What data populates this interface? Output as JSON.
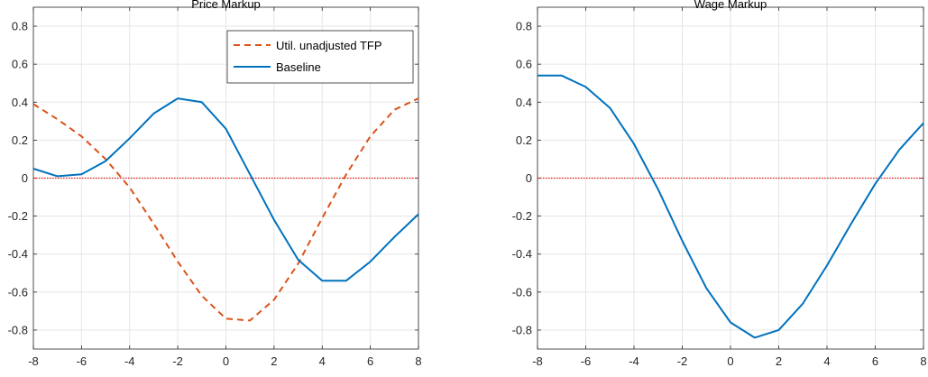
{
  "chart_data": [
    {
      "type": "line",
      "title": "Price Markup",
      "xlabel": "",
      "ylabel": "",
      "xlim": [
        -8,
        8
      ],
      "ylim": [
        -0.9,
        0.9
      ],
      "xticks": [
        -8,
        -6,
        -4,
        -2,
        0,
        2,
        4,
        6,
        8
      ],
      "yticks": [
        -0.8,
        -0.6,
        -0.4,
        -0.2,
        0,
        0.2,
        0.4,
        0.6,
        0.8
      ],
      "grid": true,
      "legend_position": "top-right",
      "zero_line_color": "#e31a1c",
      "series": [
        {
          "name": "Util. unadjusted TFP",
          "style": "dashed",
          "color": "#d95319",
          "x": [
            -8,
            -7,
            -6,
            -5,
            -4,
            -3,
            -2,
            -1,
            0,
            1,
            2,
            3,
            4,
            5,
            6,
            7,
            8
          ],
          "y": [
            0.39,
            0.31,
            0.22,
            0.1,
            -0.05,
            -0.24,
            -0.44,
            -0.62,
            -0.74,
            -0.75,
            -0.64,
            -0.45,
            -0.21,
            0.02,
            0.22,
            0.36,
            0.42
          ]
        },
        {
          "name": "Baseline",
          "style": "solid",
          "color": "#0072bd",
          "x": [
            -8,
            -7,
            -6,
            -5,
            -4,
            -3,
            -2,
            -1,
            0,
            1,
            2,
            3,
            4,
            5,
            6,
            7,
            8
          ],
          "y": [
            0.05,
            0.01,
            0.02,
            0.09,
            0.21,
            0.34,
            0.42,
            0.4,
            0.26,
            0.02,
            -0.22,
            -0.43,
            -0.54,
            -0.54,
            -0.44,
            -0.31,
            -0.19
          ]
        }
      ]
    },
    {
      "type": "line",
      "title": "Wage Markup",
      "xlabel": "",
      "ylabel": "",
      "xlim": [
        -8,
        8
      ],
      "ylim": [
        -0.9,
        0.9
      ],
      "xticks": [
        -8,
        -6,
        -4,
        -2,
        0,
        2,
        4,
        6,
        8
      ],
      "yticks": [
        -0.8,
        -0.6,
        -0.4,
        -0.2,
        0,
        0.2,
        0.4,
        0.6,
        0.8
      ],
      "grid": true,
      "legend_position": "none",
      "zero_line_color": "#e31a1c",
      "series": [
        {
          "name": "",
          "style": "solid",
          "color": "#0072bd",
          "x": [
            -8,
            -7,
            -6,
            -5,
            -4,
            -3,
            -2,
            -1,
            0,
            1,
            2,
            3,
            4,
            5,
            6,
            7,
            8
          ],
          "y": [
            0.54,
            0.54,
            0.48,
            0.37,
            0.18,
            -0.06,
            -0.33,
            -0.58,
            -0.76,
            -0.84,
            -0.8,
            -0.66,
            -0.46,
            -0.24,
            -0.03,
            0.15,
            0.29
          ]
        }
      ]
    }
  ]
}
